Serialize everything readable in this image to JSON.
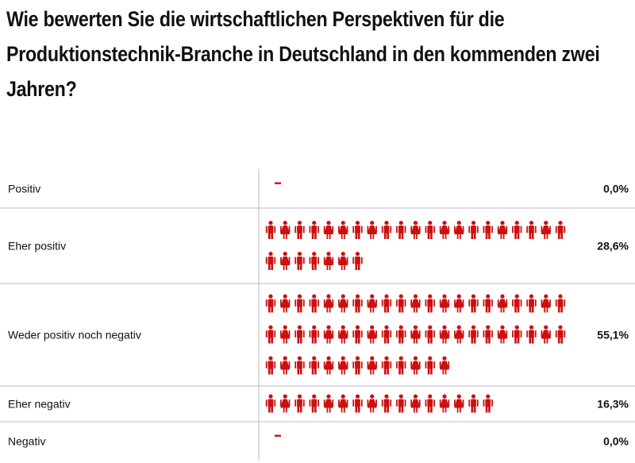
{
  "chart_data": {
    "type": "bar",
    "style": "pictogram",
    "title": "Wie bewerten Sie die wirtschaftlichen Perspektiven für die Produktionstechnik-Branche in Deutschland in den kommenden zwei Jahren?",
    "categories": [
      "Positiv",
      "Eher positiv",
      "Weder positiv noch negativ",
      "Eher negativ",
      "Negativ"
    ],
    "values": [
      0.0,
      28.6,
      55.1,
      16.3,
      0.0
    ],
    "value_labels": [
      "0,0%",
      "28,6%",
      "55,1%",
      "16,3%",
      "0,0%"
    ],
    "unit": "%",
    "colors": {
      "icon": "#cc1010",
      "divider": "#bbbbbb"
    }
  }
}
